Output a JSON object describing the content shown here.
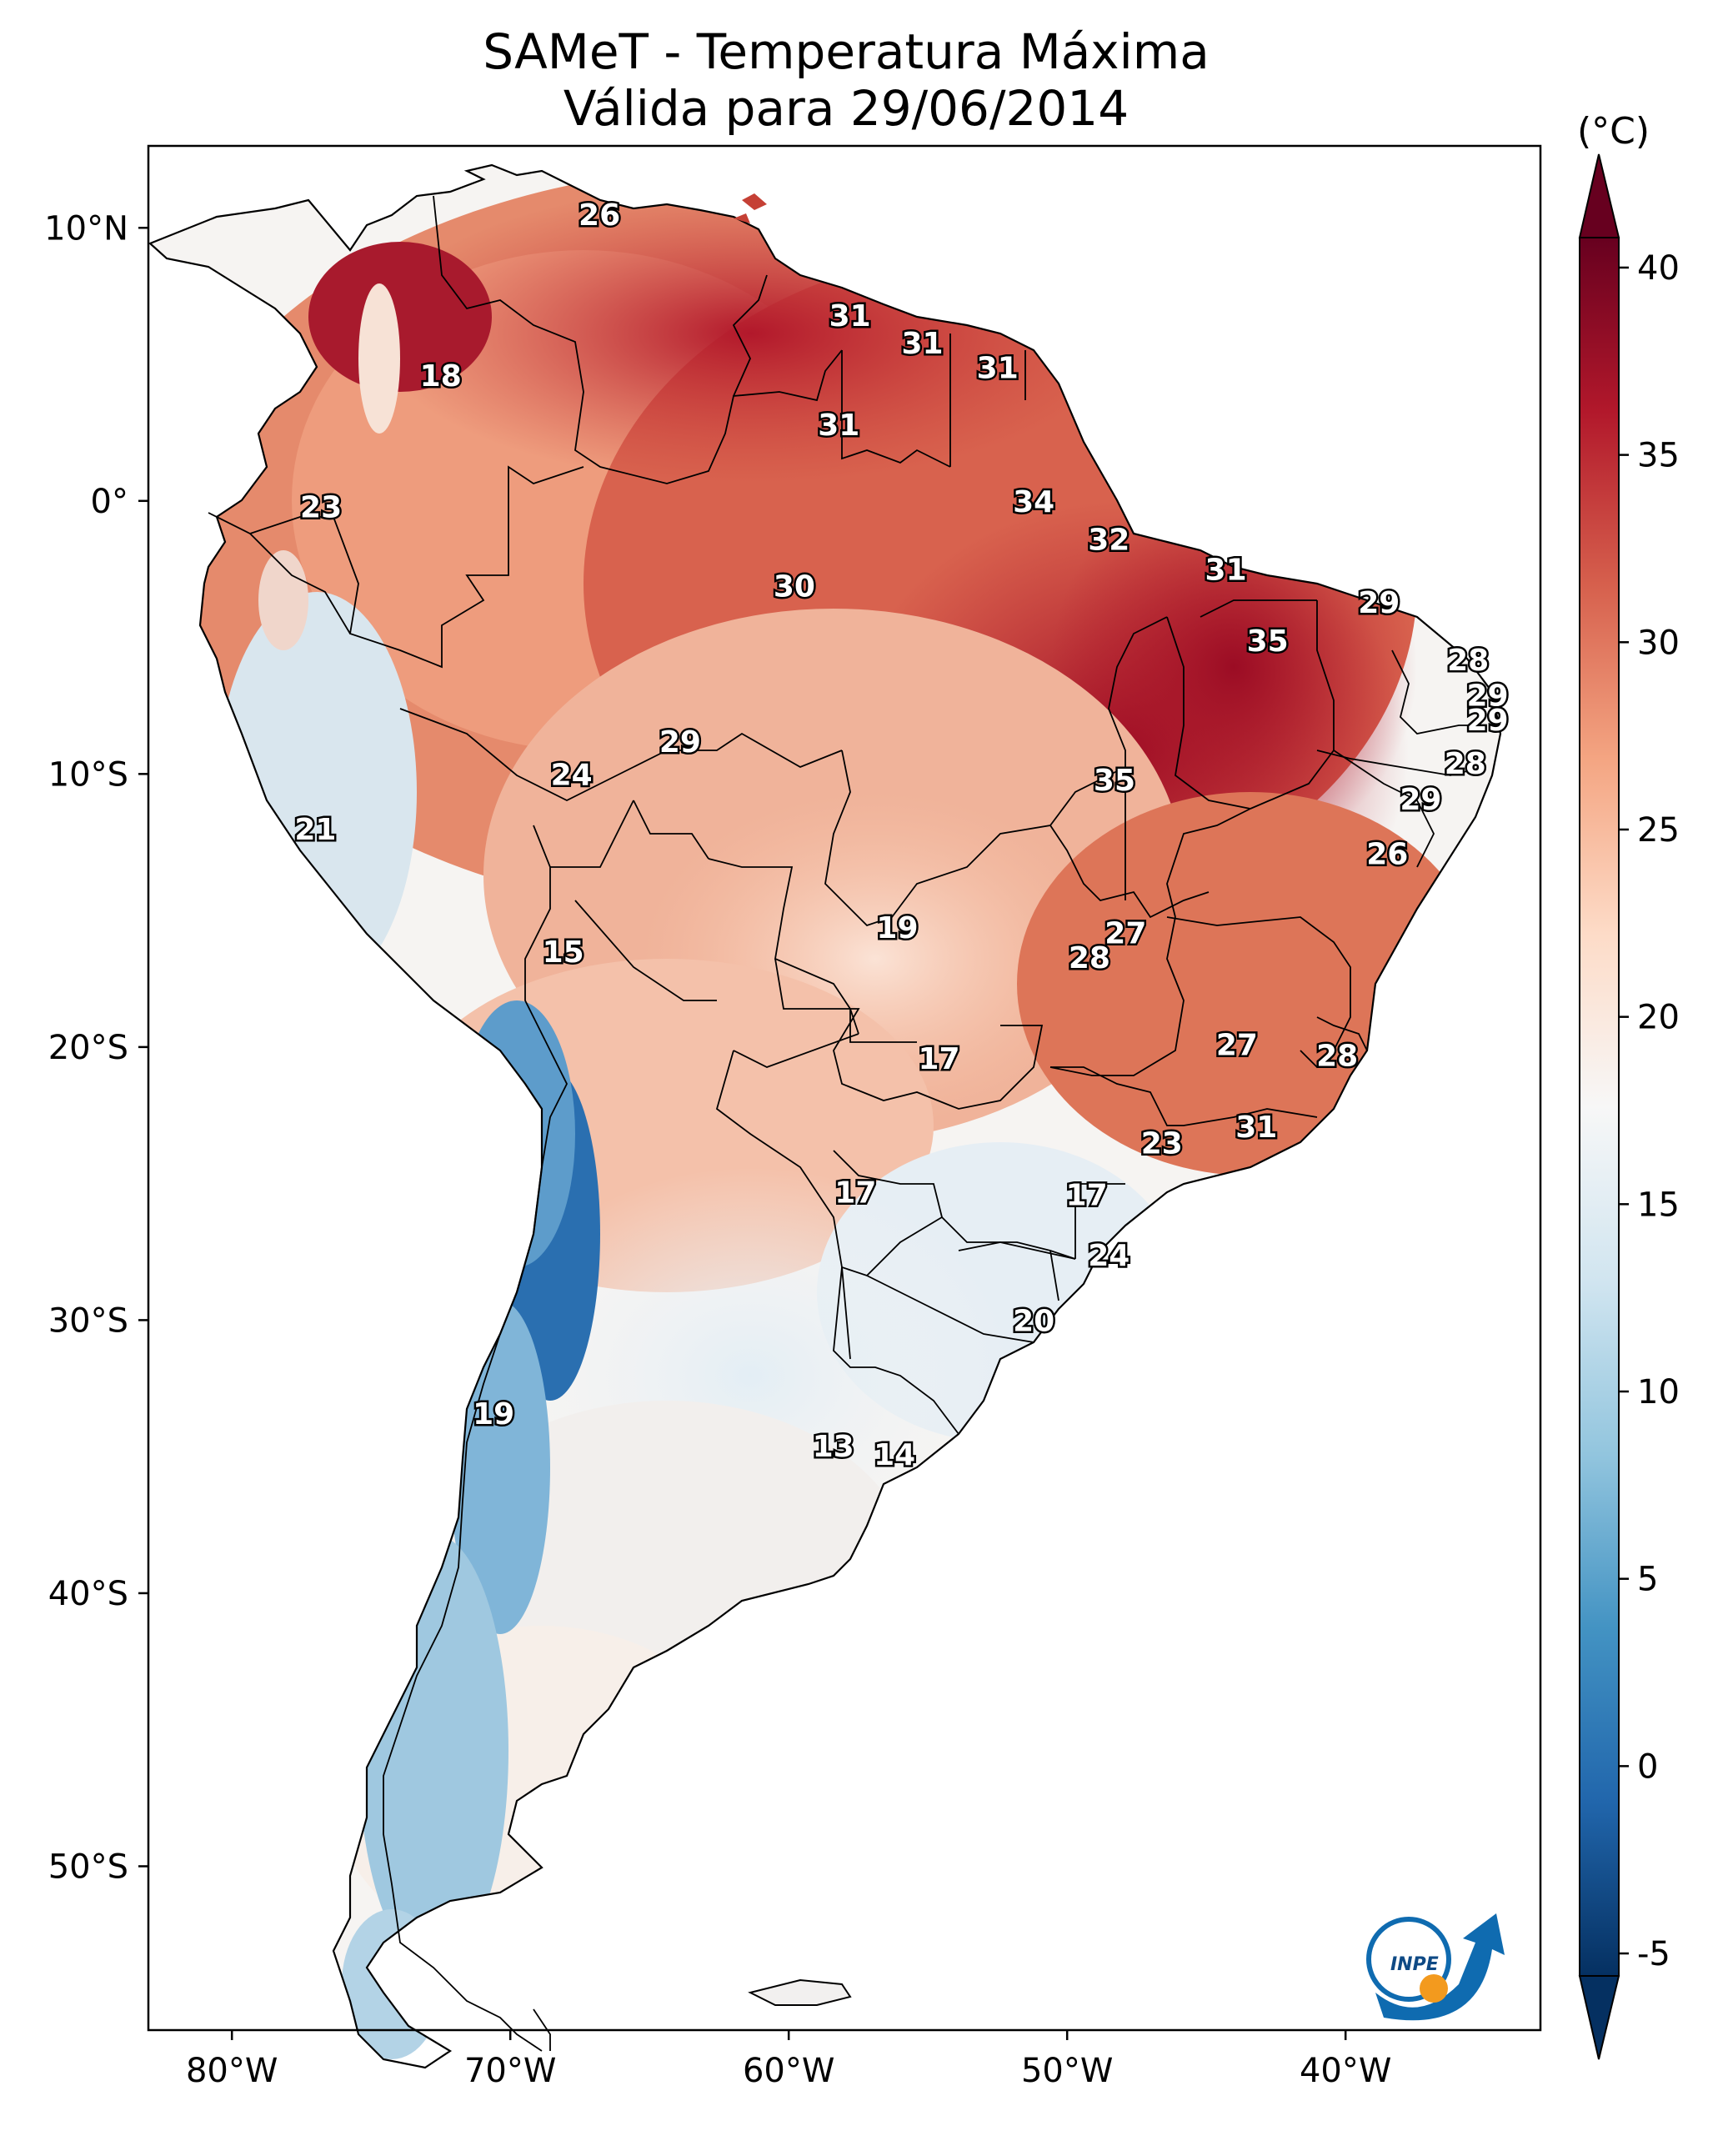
{
  "title": {
    "line1": "SAMeT - Temperatura Máxima",
    "line2": "Válida para 29/06/2014"
  },
  "map": {
    "lon_range": [
      -83,
      -33
    ],
    "lat_range": [
      -56,
      13
    ],
    "lat_ticks": [
      {
        "value": 10,
        "label": "10°N"
      },
      {
        "value": 0,
        "label": "0°"
      },
      {
        "value": -10,
        "label": "10°S"
      },
      {
        "value": -20,
        "label": "20°S"
      },
      {
        "value": -30,
        "label": "30°S"
      },
      {
        "value": -40,
        "label": "40°S"
      },
      {
        "value": -50,
        "label": "50°S"
      }
    ],
    "lon_ticks": [
      {
        "value": -80,
        "label": "80°W"
      },
      {
        "value": -70,
        "label": "70°W"
      },
      {
        "value": -60,
        "label": "60°W"
      },
      {
        "value": -50,
        "label": "50°W"
      },
      {
        "value": -40,
        "label": "40°W"
      }
    ],
    "city_labels": [
      {
        "lon": -66.8,
        "lat": 10.5,
        "value": "26"
      },
      {
        "lon": -72.5,
        "lat": 4.6,
        "value": "18"
      },
      {
        "lon": -57.8,
        "lat": 6.8,
        "value": "31"
      },
      {
        "lon": -55.2,
        "lat": 5.8,
        "value": "31"
      },
      {
        "lon": -52.5,
        "lat": 4.9,
        "value": "31"
      },
      {
        "lon": -58.2,
        "lat": 2.8,
        "value": "31"
      },
      {
        "lon": -76.8,
        "lat": -0.2,
        "value": "23"
      },
      {
        "lon": -51.2,
        "lat": 0.0,
        "value": "34"
      },
      {
        "lon": -48.5,
        "lat": -1.4,
        "value": "32"
      },
      {
        "lon": -44.3,
        "lat": -2.5,
        "value": "31"
      },
      {
        "lon": -59.8,
        "lat": -3.1,
        "value": "30"
      },
      {
        "lon": -38.8,
        "lat": -3.7,
        "value": "29"
      },
      {
        "lon": -42.8,
        "lat": -5.1,
        "value": "35"
      },
      {
        "lon": -35.6,
        "lat": -5.8,
        "value": "28"
      },
      {
        "lon": -34.9,
        "lat": -7.1,
        "value": "29"
      },
      {
        "lon": -34.9,
        "lat": -8.0,
        "value": "29"
      },
      {
        "lon": -63.9,
        "lat": -8.8,
        "value": "29"
      },
      {
        "lon": -35.7,
        "lat": -9.6,
        "value": "28"
      },
      {
        "lon": -67.8,
        "lat": -10.0,
        "value": "24"
      },
      {
        "lon": -48.3,
        "lat": -10.2,
        "value": "35"
      },
      {
        "lon": -37.3,
        "lat": -10.9,
        "value": "29"
      },
      {
        "lon": -38.5,
        "lat": -12.9,
        "value": "26"
      },
      {
        "lon": -77.0,
        "lat": -12.0,
        "value": "21"
      },
      {
        "lon": -56.1,
        "lat": -15.6,
        "value": "19"
      },
      {
        "lon": -47.9,
        "lat": -15.8,
        "value": "27"
      },
      {
        "lon": -49.2,
        "lat": -16.7,
        "value": "28"
      },
      {
        "lon": -68.1,
        "lat": -16.5,
        "value": "15"
      },
      {
        "lon": -54.6,
        "lat": -20.4,
        "value": "17"
      },
      {
        "lon": -43.9,
        "lat": -19.9,
        "value": "27"
      },
      {
        "lon": -40.3,
        "lat": -20.3,
        "value": "28"
      },
      {
        "lon": -46.6,
        "lat": -23.5,
        "value": "23"
      },
      {
        "lon": -43.2,
        "lat": -22.9,
        "value": "31"
      },
      {
        "lon": -57.6,
        "lat": -25.3,
        "value": "17"
      },
      {
        "lon": -49.3,
        "lat": -25.4,
        "value": "17"
      },
      {
        "lon": -48.5,
        "lat": -27.6,
        "value": "24"
      },
      {
        "lon": -51.2,
        "lat": -30.0,
        "value": "20"
      },
      {
        "lon": -70.6,
        "lat": -33.4,
        "value": "19"
      },
      {
        "lon": -58.4,
        "lat": -34.6,
        "value": "13"
      },
      {
        "lon": -56.2,
        "lat": -34.9,
        "value": "14"
      }
    ],
    "logo_text": "INPE"
  },
  "colorbar": {
    "units": "(°C)",
    "min": -5,
    "max": 40,
    "ticks": [
      "40",
      "35",
      "30",
      "25",
      "20",
      "15",
      "10",
      "5",
      "0",
      "-5"
    ],
    "colors": [
      "#053061",
      "#2166ac",
      "#4393c3",
      "#92c5de",
      "#d1e5f0",
      "#f7f7f7",
      "#fddbc7",
      "#f4a582",
      "#d6604d",
      "#b2182b",
      "#67001f"
    ]
  }
}
